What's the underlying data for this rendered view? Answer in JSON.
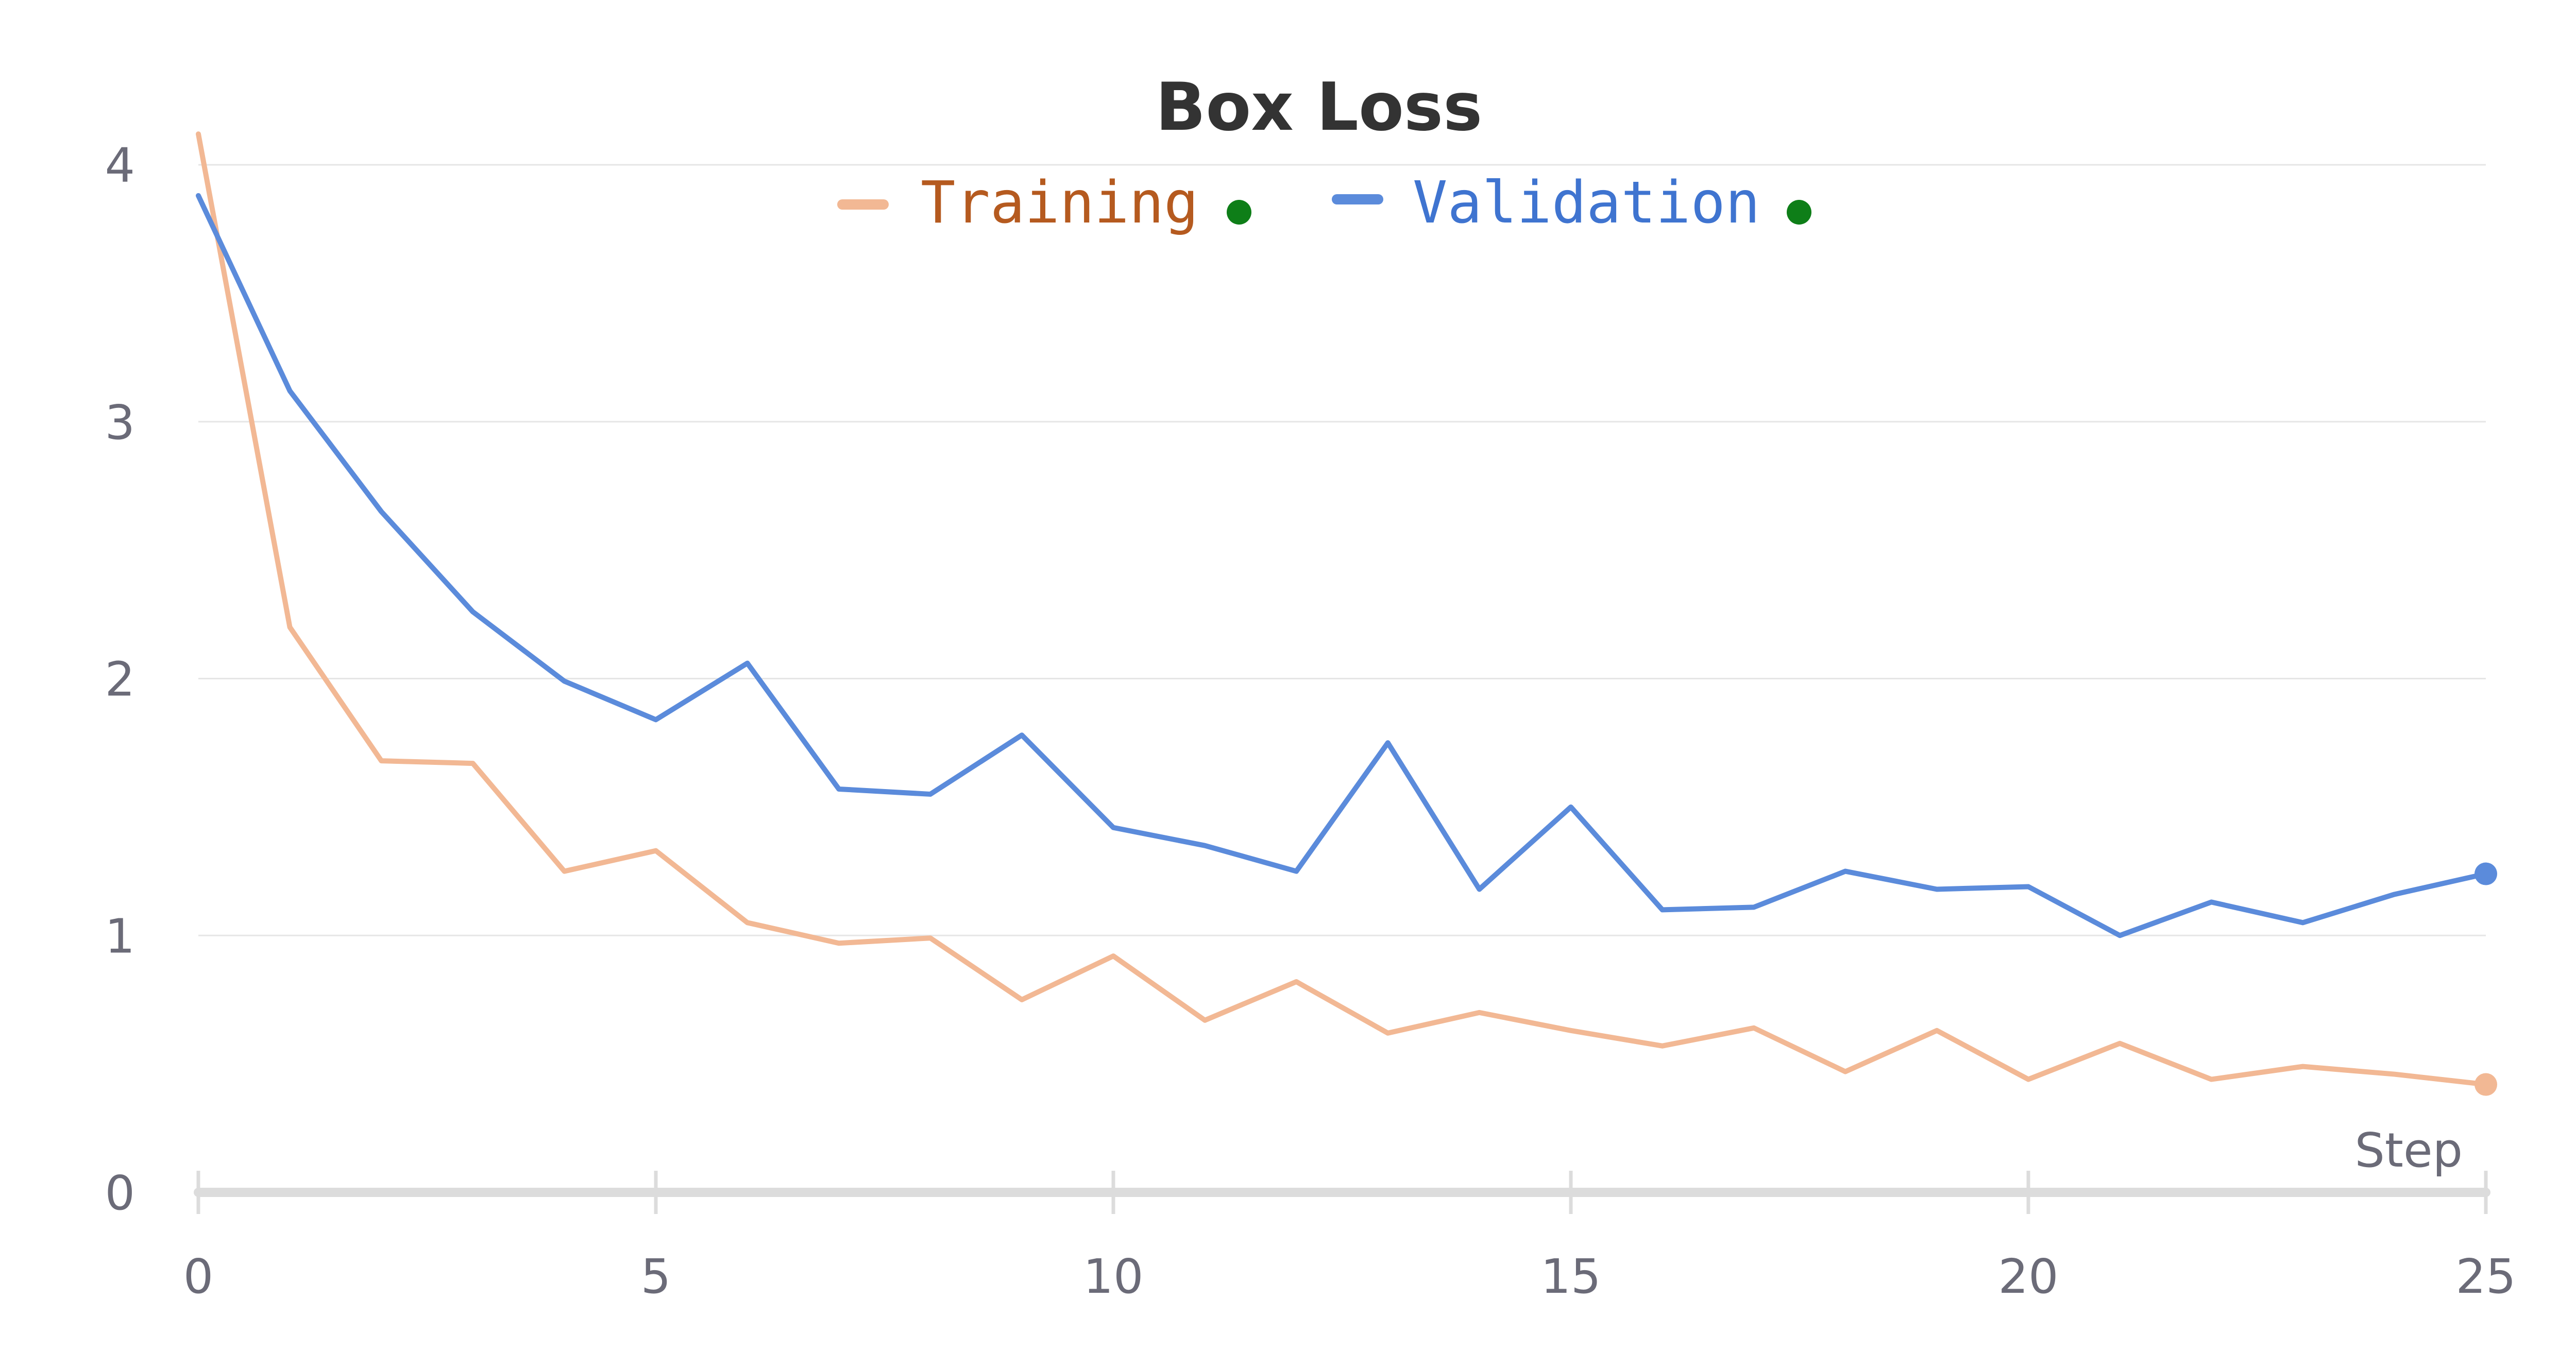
{
  "colors": {
    "training": "#F2B894",
    "training_text": "#B55A1F",
    "validation": "#5B8BDB",
    "validation_text": "#3F74D0",
    "status_dot": "#0E7E18",
    "grid": "#E6E6E6",
    "axis": "#DCDCDC",
    "tick_text": "#6B6B78",
    "title_text": "#333333"
  },
  "legend": {
    "placement": "top-center",
    "items": [
      {
        "key": "training",
        "label": "Training",
        "status": "green-dot-icon"
      },
      {
        "key": "validation",
        "label": "Validation",
        "status": "green-dot-icon"
      }
    ]
  },
  "chart_data": {
    "type": "line",
    "title": "Box Loss",
    "xlabel": "Step",
    "ylabel": "",
    "xlim": [
      0,
      25
    ],
    "ylim": [
      0,
      4
    ],
    "xticks": [
      0,
      5,
      10,
      15,
      20,
      25
    ],
    "yticks": [
      0,
      1,
      2,
      3,
      4
    ],
    "grid": true,
    "x": [
      0,
      1,
      2,
      3,
      4,
      5,
      6,
      7,
      8,
      9,
      10,
      11,
      12,
      13,
      14,
      15,
      16,
      17,
      18,
      19,
      20,
      21,
      22,
      23,
      24,
      25
    ],
    "series": [
      {
        "name": "Training",
        "key": "training",
        "values": [
          4.12,
          2.2,
          1.68,
          1.67,
          1.25,
          1.33,
          1.05,
          0.97,
          0.99,
          0.75,
          0.92,
          0.67,
          0.82,
          0.62,
          0.7,
          0.63,
          0.57,
          0.64,
          0.47,
          0.63,
          0.44,
          0.58,
          0.44,
          0.49,
          0.46,
          0.42
        ],
        "end_marker": true
      },
      {
        "name": "Validation",
        "key": "validation",
        "values": [
          3.88,
          3.12,
          2.65,
          2.26,
          1.99,
          1.84,
          2.06,
          1.57,
          1.55,
          1.78,
          1.42,
          1.35,
          1.25,
          1.75,
          1.18,
          1.5,
          1.1,
          1.11,
          1.25,
          1.18,
          1.19,
          1.0,
          1.13,
          1.05,
          1.16,
          1.24
        ],
        "end_marker": true
      }
    ]
  }
}
